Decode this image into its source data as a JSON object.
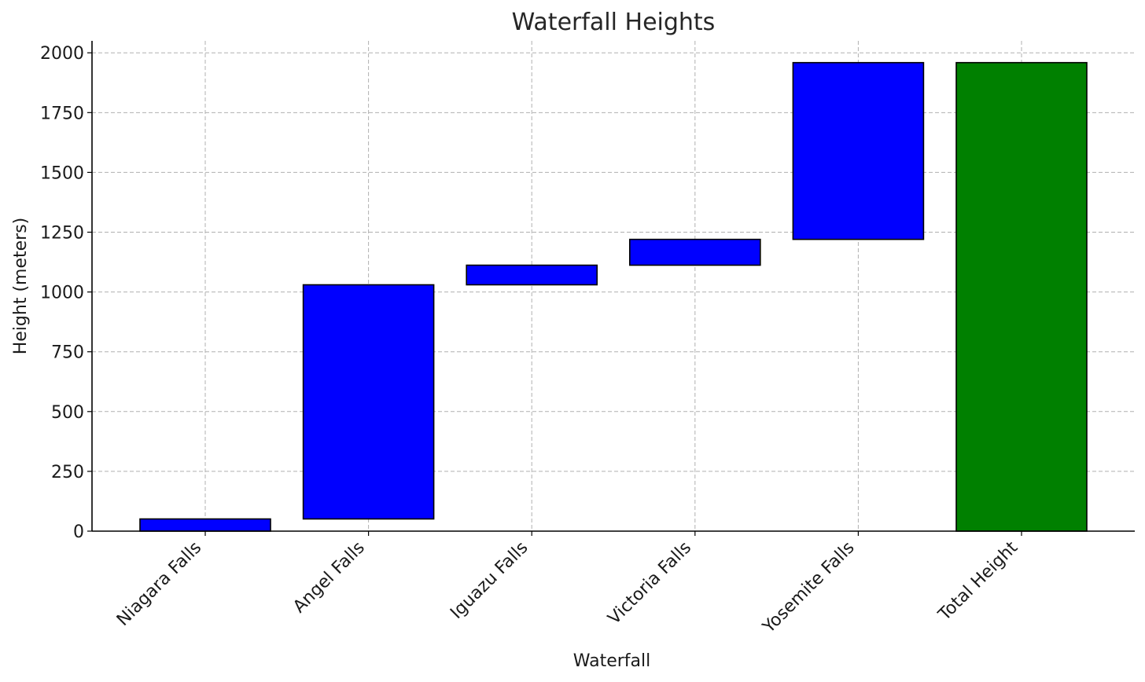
{
  "chart_data": {
    "type": "bar",
    "subtype": "waterfall",
    "title": "Waterfall Heights",
    "xlabel": "Waterfall",
    "ylabel": "Height (meters)",
    "categories": [
      "Niagara Falls",
      "Angel Falls",
      "Iguazu Falls",
      "Victoria Falls",
      "Yosemite Falls",
      "Total Height"
    ],
    "values": [
      51,
      979,
      82,
      108,
      739,
      1959
    ],
    "bases": [
      0,
      51,
      1030,
      1112,
      1220,
      0
    ],
    "ylim": [
      0,
      2050
    ],
    "yticks": [
      0,
      250,
      500,
      750,
      1000,
      1250,
      1500,
      1750,
      2000
    ],
    "grid": true,
    "colors": {
      "increment": "#0000ff",
      "total": "#008000"
    }
  }
}
